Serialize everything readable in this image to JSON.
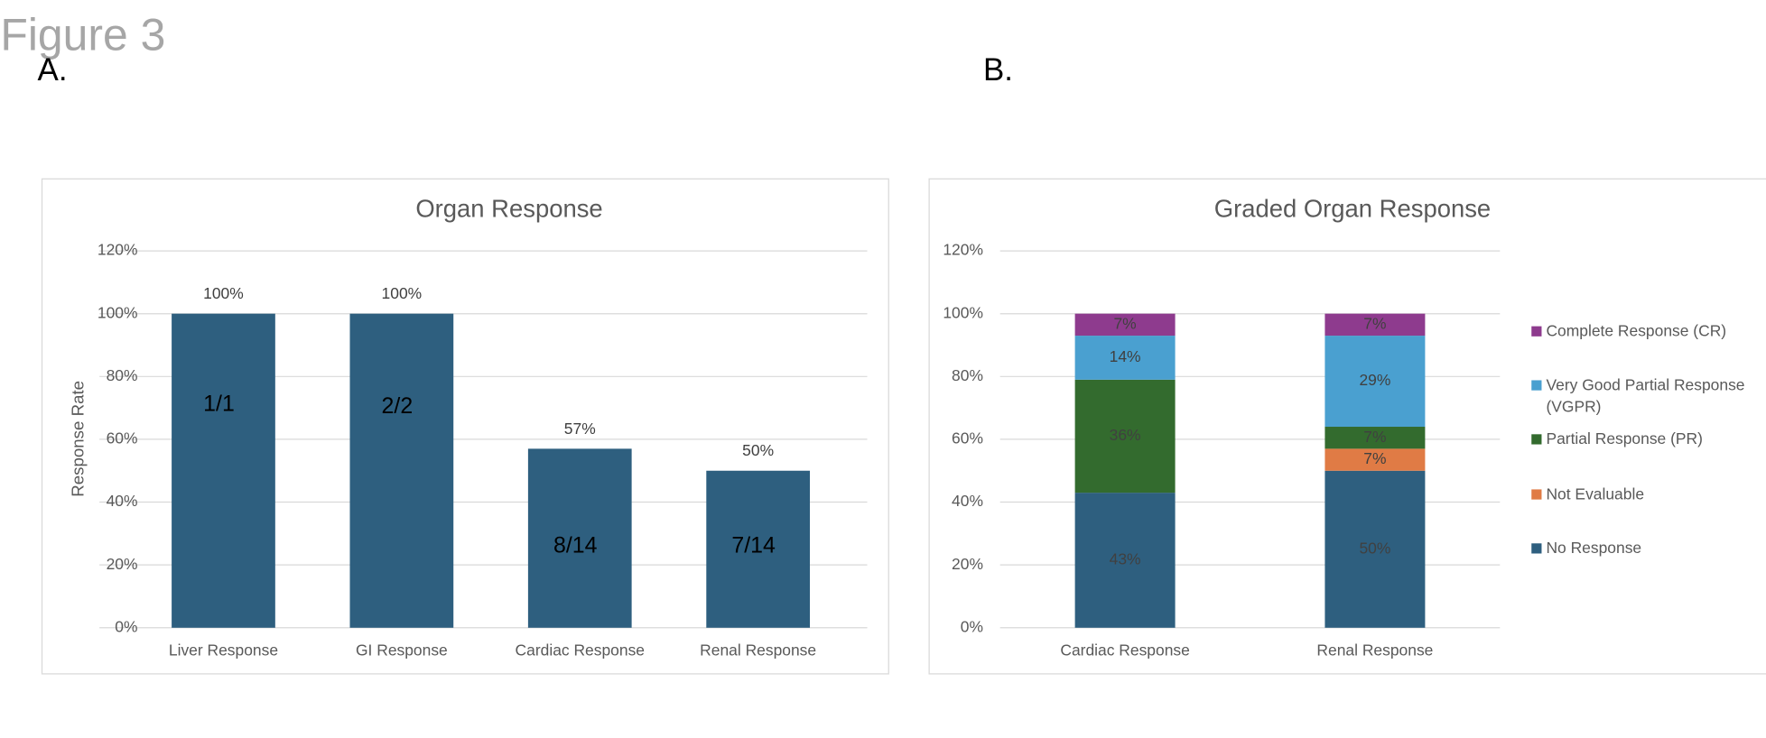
{
  "figure_title": "Figure 3",
  "panels": [
    "A.",
    "B."
  ],
  "chart_data": [
    {
      "type": "bar",
      "title": "Organ Response",
      "y_label": "Response Rate",
      "categories": [
        "Liver Response",
        "GI Response",
        "Cardiac Response",
        "Renal Response"
      ],
      "values": [
        100,
        100,
        57,
        50
      ],
      "value_labels": [
        "100%",
        "100%",
        "57%",
        "50%"
      ],
      "bar_annotations": [
        "1/1",
        "2/2",
        "8/14",
        "7/14"
      ],
      "color": "#2e5f7f",
      "ylim": [
        0,
        120
      ],
      "yticks": [
        {
          "value": 0,
          "label": "0%"
        },
        {
          "value": 20,
          "label": "20%"
        },
        {
          "value": 40,
          "label": "40%"
        },
        {
          "value": 60,
          "label": "60%"
        },
        {
          "value": 80,
          "label": "80%"
        },
        {
          "value": 100,
          "label": "100%"
        },
        {
          "value": 120,
          "label": "120%"
        }
      ],
      "grid": true
    },
    {
      "type": "stacked_bar",
      "title": "Graded Organ Response",
      "categories": [
        "Cardiac Response",
        "Renal Response"
      ],
      "series": [
        {
          "name": "No Response",
          "color": "#2e5f7f",
          "values": [
            43,
            50
          ],
          "value_labels": [
            "43%",
            "50%"
          ]
        },
        {
          "name": "Not Evaluable",
          "color": "#e07b45",
          "values": [
            0,
            7
          ],
          "value_labels": [
            null,
            "7%"
          ]
        },
        {
          "name": "Partial Response (PR)",
          "color": "#336b2e",
          "values": [
            36,
            7
          ],
          "value_labels": [
            "36%",
            "7%"
          ]
        },
        {
          "name": "Very Good Partial Response (VGPR)",
          "color": "#4aa0d0",
          "values": [
            14,
            29
          ],
          "value_labels": [
            "14%",
            "29%"
          ]
        },
        {
          "name": "Complete Response (CR)",
          "color": "#8e3b8e",
          "values": [
            7,
            7
          ],
          "value_labels": [
            "7%",
            "7%"
          ]
        }
      ],
      "ylim": [
        0,
        120
      ],
      "yticks": [
        {
          "value": 0,
          "label": "0%"
        },
        {
          "value": 20,
          "label": "20%"
        },
        {
          "value": 40,
          "label": "40%"
        },
        {
          "value": 60,
          "label": "60%"
        },
        {
          "value": 80,
          "label": "80%"
        },
        {
          "value": 100,
          "label": "100%"
        },
        {
          "value": 120,
          "label": "120%"
        }
      ],
      "grid": true,
      "legend": "right"
    }
  ]
}
